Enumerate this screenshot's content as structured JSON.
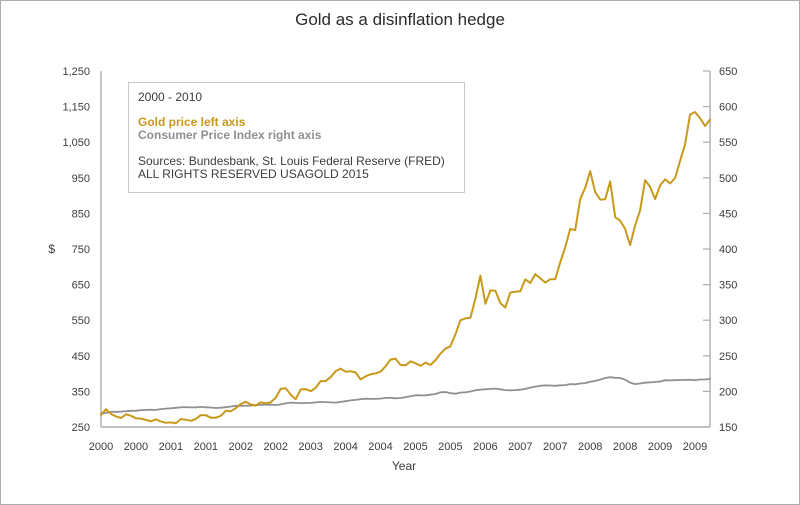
{
  "chart_data": {
    "type": "line",
    "title": "Gold as a disinflation hedge",
    "xlabel": "Year",
    "x_axis": {
      "start_year": 2000,
      "frequency": "monthly",
      "points": 123,
      "tick_month_offsets": [
        0,
        7,
        14,
        21,
        28,
        35,
        42,
        49,
        56,
        63,
        70,
        77,
        84,
        91,
        98,
        105,
        112,
        119
      ],
      "tick_labels": [
        "2000",
        "2000",
        "2001",
        "2001",
        "2002",
        "2002",
        "2003",
        "2004",
        "2004",
        "2005",
        "2005",
        "2006",
        "2007",
        "2007",
        "2008",
        "2008",
        "2009",
        "2009"
      ]
    },
    "left_axis": {
      "label": "$",
      "min": 250,
      "max": 1250,
      "tick_step": 100,
      "tick_labels": [
        "250",
        "350",
        "450",
        "550",
        "650",
        "750",
        "850",
        "950",
        "1,050",
        "1,150",
        "1,250"
      ]
    },
    "right_axis": {
      "min": 150,
      "max": 650,
      "tick_step": 50,
      "tick_labels": [
        "150",
        "200",
        "250",
        "300",
        "350",
        "400",
        "450",
        "500",
        "550",
        "600",
        "650"
      ]
    },
    "grid": false,
    "legend_position": "top-left",
    "series": [
      {
        "name": "Gold price",
        "axis": "left",
        "color": "#C8991B",
        "values": [
          284.3,
          299.9,
          286.4,
          279.7,
          275.2,
          285.7,
          281.6,
          274.5,
          273.7,
          270.0,
          266.0,
          271.5,
          265.5,
          261.9,
          263.0,
          260.5,
          272.4,
          270.2,
          267.5,
          272.4,
          283.4,
          283.1,
          276.2,
          275.9,
          281.5,
          295.5,
          294.0,
          302.7,
          314.5,
          321.2,
          313.3,
          310.3,
          319.2,
          316.6,
          319.1,
          332.4,
          356.9,
          359.0,
          340.6,
          328.2,
          355.7,
          356.4,
          350.6,
          359.8,
          378.9,
          378.9,
          389.9,
          406.9,
          414.0,
          405.3,
          406.7,
          403.0,
          383.8,
          392.4,
          398.1,
          400.5,
          405.3,
          420.5,
          439.4,
          442.1,
          424.2,
          423.4,
          434.2,
          429.2,
          421.9,
          430.7,
          424.5,
          437.9,
          456.0,
          469.9,
          476.7,
          510.1,
          549.9,
          555.0,
          557.1,
          610.6,
          675.4,
          596.2,
          633.8,
          632.6,
          598.2,
          585.8,
          627.8,
          629.8,
          631.2,
          664.7,
          654.9,
          679.4,
          667.3,
          655.5,
          665.3,
          665.4,
          712.7,
          754.6,
          806.3,
          803.2,
          889.6,
          922.3,
          968.4,
          909.7,
          888.7,
          889.5,
          939.8,
          839.0,
          829.9,
          806.6,
          760.9,
          816.1,
          858.7,
          943.2,
          924.3,
          890.2,
          928.6,
          945.7,
          934.2,
          949.4,
          996.6,
          1043.2,
          1127.0,
          1134.7,
          1118.0,
          1095.4,
          1113.3
        ]
      },
      {
        "name": "Consumer Price Index",
        "axis": "right",
        "color": "#909090",
        "values": [
          168.8,
          169.8,
          171.2,
          171.3,
          171.5,
          172.4,
          172.8,
          172.8,
          173.7,
          174.0,
          174.1,
          174.0,
          175.1,
          175.8,
          176.2,
          176.9,
          177.7,
          178.0,
          177.5,
          177.5,
          178.3,
          177.7,
          177.4,
          176.7,
          177.1,
          177.8,
          178.8,
          179.8,
          179.8,
          179.9,
          180.1,
          180.7,
          181.0,
          181.3,
          181.3,
          180.9,
          181.7,
          183.1,
          184.2,
          183.8,
          183.5,
          183.7,
          183.9,
          184.6,
          185.2,
          185.0,
          184.5,
          184.3,
          185.2,
          186.2,
          187.4,
          188.0,
          189.1,
          189.7,
          189.4,
          189.5,
          189.9,
          190.9,
          191.0,
          190.3,
          190.7,
          191.8,
          193.3,
          194.6,
          194.4,
          194.5,
          195.4,
          196.4,
          198.8,
          199.2,
          197.6,
          196.8,
          198.3,
          198.7,
          199.8,
          201.5,
          202.5,
          202.9,
          203.5,
          203.9,
          202.9,
          201.8,
          201.5,
          201.8,
          202.4,
          203.5,
          205.4,
          206.7,
          207.9,
          208.4,
          208.3,
          207.9,
          208.5,
          208.9,
          210.2,
          210.0,
          211.1,
          211.7,
          213.5,
          214.8,
          216.6,
          218.8,
          220.0,
          219.1,
          218.8,
          216.6,
          212.4,
          210.2,
          211.1,
          212.2,
          212.7,
          213.2,
          213.9,
          215.7,
          215.4,
          215.8,
          216.0,
          216.2,
          216.3,
          215.9,
          216.7,
          216.7,
          217.6
        ]
      }
    ]
  },
  "legend": {
    "period": "2000 - 2010",
    "gold_series": "Gold price left axis",
    "cpi_series": "Consumer Price Index right axis",
    "sources": "Sources: Bundesbank, St. Louis Federal Reserve (FRED)",
    "rights": "ALL RIGHTS RESERVED USAGOLD 2015"
  },
  "colors": {
    "gold": "#C8991B",
    "cpi_gray": "#909090",
    "axis_line": "#adadad",
    "tick_text": "#3c3c3c",
    "title_text": "#2b2b2b",
    "legend_border": "#c9c9c9"
  }
}
